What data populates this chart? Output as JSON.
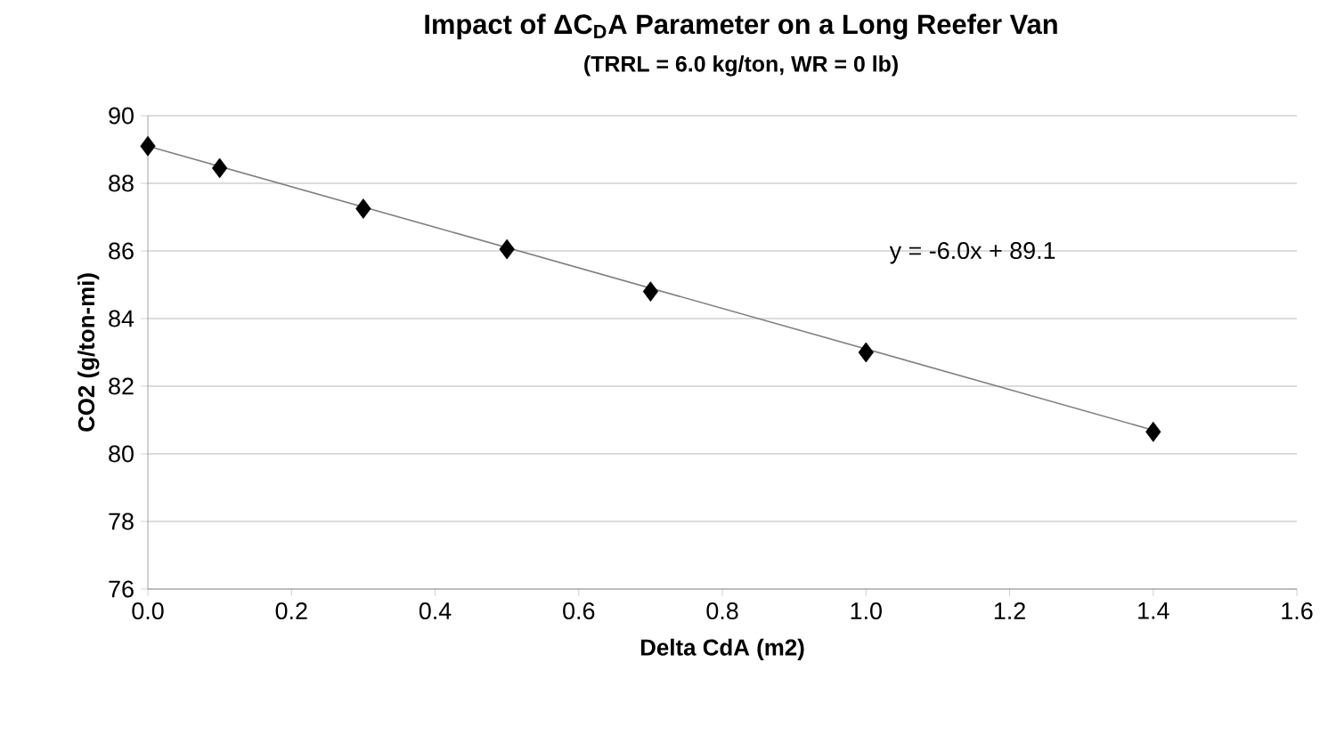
{
  "chart_data": {
    "type": "scatter",
    "title": "Impact of ΔC$_{D}$A Parameter on a Long Reefer Van",
    "subtitle": "(TRRL = 6.0 kg/ton, WR = 0 lb)",
    "xlabel": "Delta CdA (m2)",
    "ylabel": "CO2 (g/ton-mi)",
    "annotations": [
      "y = -6.0x + 89.1"
    ],
    "series": [
      {
        "marker": "diamond",
        "color": "#000000",
        "x": [
          0.0,
          0.1,
          0.3,
          0.5,
          0.7,
          1.0,
          1.4
        ],
        "values": [
          89.1,
          88.45,
          87.25,
          86.05,
          84.8,
          83.0,
          80.65
        ]
      },
      {
        "type": "line",
        "color": "#808080",
        "x": [
          0.0,
          1.4
        ],
        "values": [
          89.1,
          80.7
        ]
      }
    ],
    "grid": "y",
    "xlim": [
      0.0,
      1.6
    ],
    "xticks": [
      {
        "value": 0,
        "label": "0.0"
      },
      0.2,
      0.4,
      0.6,
      0.8,
      {
        "value": 1,
        "label": "1.0"
      },
      1.2,
      1.4,
      1.6
    ],
    "ylim": [
      76,
      90
    ],
    "yticks": [
      76,
      78,
      80,
      82,
      84,
      86,
      88,
      90
    ]
  }
}
